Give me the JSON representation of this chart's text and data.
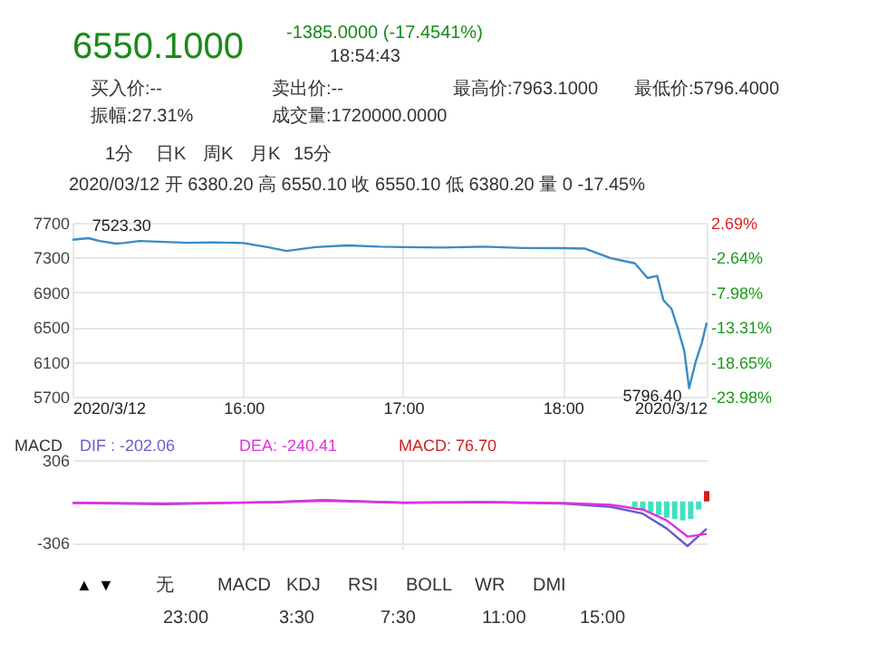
{
  "chart_data": [
    {
      "type": "other",
      "annotations": [
        "6550.1000",
        "-1385.0000 (-17.4541%)",
        "18:54:43",
        "买入价:--",
        "卖出价:--",
        "最高价:7963.1000",
        "最低价:5796.4000",
        "振幅:27.31%",
        "成交量:1720000.0000",
        "1分",
        "日K",
        "周K",
        "月K",
        "15分",
        "2020/03/12 开 6380.20 高 6550.10 收 6550.10 低 6380.20 量 0 -17.45%"
      ]
    },
    {
      "type": "line",
      "color": "#3a8cc4",
      "x": [
        14.93,
        15.03,
        15.1,
        15.2,
        15.25,
        15.35,
        15.5,
        15.65,
        15.8,
        16.0,
        16.15,
        16.27,
        16.45,
        16.65,
        16.85,
        17.0,
        17.25,
        17.5,
        17.75,
        18.0,
        18.14,
        18.3,
        18.45,
        18.53,
        18.59,
        18.63,
        18.68,
        18.72,
        18.76,
        18.79,
        18.83,
        18.87,
        18.9
      ],
      "values": [
        7505,
        7523.3,
        7490,
        7460,
        7467,
        7490,
        7480,
        7470,
        7475,
        7467,
        7420,
        7376,
        7420,
        7440,
        7425,
        7420,
        7415,
        7425,
        7410,
        7409,
        7403,
        7292,
        7234,
        7065,
        7090,
        6807,
        6710,
        6483,
        6224,
        5796.4,
        6094,
        6321,
        6550.1
      ],
      "xlim": [
        14.93,
        18.9
      ],
      "xticks": [
        {
          "value": 14.93,
          "label": "2020/3/12"
        },
        {
          "value": 16,
          "label": "16:00"
        },
        {
          "value": 17,
          "label": "17:00"
        },
        {
          "value": 18,
          "label": "18:00"
        },
        {
          "value": 18.9,
          "label": "2020/3/12"
        }
      ],
      "ylim": [
        5700,
        7700
      ],
      "yticks": [
        5700,
        6100,
        6500,
        6900,
        7300,
        7700
      ],
      "y2lim": [
        -23.98,
        2.69
      ],
      "y2ticks": [
        {
          "value": 2.69,
          "label": "2.69%"
        },
        {
          "value": -2.64,
          "label": "-2.64%"
        },
        {
          "value": -7.98,
          "label": "-7.98%"
        },
        {
          "value": -13.31,
          "label": "-13.31%"
        },
        {
          "value": -18.65,
          "label": "-18.65%"
        },
        {
          "value": -23.98,
          "label": "-23.98%"
        }
      ],
      "grid": true,
      "annotations": [
        {
          "text": "7523.30",
          "x": 15.03,
          "y": 7523.3
        },
        {
          "text": "5796.40",
          "x": 18.79,
          "y": 5796.4
        }
      ]
    },
    {
      "type": "line",
      "legend_title": "MACD",
      "legend": "top",
      "tick_labels": "y",
      "grid": true,
      "xlim": [
        14.93,
        18.9
      ],
      "ylim": [
        -350,
        320
      ],
      "yticks": [
        {
          "value": 306,
          "label": "306"
        },
        {
          "value": -306,
          "label": "-306"
        }
      ],
      "series": [
        {
          "name": "DIF : -202.06",
          "color": "#6a5acd",
          "x": [
            14.93,
            15.5,
            16.2,
            16.5,
            17.0,
            17.5,
            18.0,
            18.3,
            18.5,
            18.65,
            18.78,
            18.9
          ],
          "values": [
            -10,
            -20,
            -5,
            10,
            -10,
            -5,
            -15,
            -40,
            -90,
            -200,
            -330,
            -202.06
          ]
        },
        {
          "name": "DEA: -240.41",
          "color": "#e030e0",
          "x": [
            14.93,
            15.5,
            16.2,
            16.5,
            17.0,
            17.5,
            18.0,
            18.3,
            18.5,
            18.65,
            18.78,
            18.9
          ],
          "values": [
            -10,
            -15,
            -5,
            5,
            -8,
            -5,
            -12,
            -25,
            -60,
            -140,
            -260,
            -240.41
          ]
        },
        {
          "name": "MACD: 76.70",
          "type": "bar",
          "color": "#d02020",
          "x": [
            18.45,
            18.5,
            18.55,
            18.6,
            18.65,
            18.7,
            18.75,
            18.8,
            18.85,
            18.9
          ],
          "values": [
            -40,
            -60,
            -80,
            -100,
            -120,
            -130,
            -140,
            -130,
            -60,
            76.7
          ],
          "colors": [
            "#40e0c0",
            "#40e0c0",
            "#40e0c0",
            "#40e0c0",
            "#40e0c0",
            "#40e0c0",
            "#40e0c0",
            "#40e0c0",
            "#40e0c0",
            "#d02020"
          ]
        }
      ]
    },
    {
      "type": "other",
      "annotations": [
        "▲",
        "▼",
        "无",
        "MACD",
        "KDJ",
        "RSI",
        "BOLL",
        "WR",
        "DMI",
        "23:00",
        "3:30",
        "7:30",
        "11:00",
        "15:00"
      ]
    }
  ]
}
